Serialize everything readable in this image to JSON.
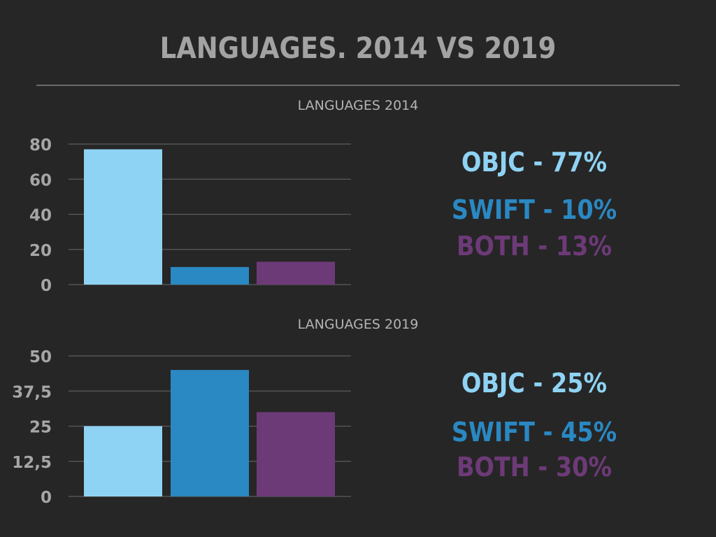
{
  "title": "LANGUAGES. 2014 VS 2019",
  "colors": {
    "objc": "#8fd3f4",
    "swift": "#2a88c2",
    "both": "#6d3a78",
    "background": "#262626"
  },
  "chart_data": [
    {
      "type": "bar",
      "title": "LANGUAGES 2014",
      "categories": [
        "OBJC",
        "SWIFT",
        "BOTH"
      ],
      "values": [
        77,
        10,
        13
      ],
      "ylim": [
        0,
        80
      ],
      "yticks": [
        "0",
        "20",
        "40",
        "60",
        "80"
      ],
      "grid": true,
      "annotations": [
        "OBJC - 77%",
        "SWIFT - 10%",
        "BOTH - 13%"
      ]
    },
    {
      "type": "bar",
      "title": "LANGUAGES 2019",
      "categories": [
        "OBJC",
        "SWIFT",
        "BOTH"
      ],
      "values": [
        25,
        45,
        30
      ],
      "ylim": [
        0,
        50
      ],
      "yticks": [
        "0",
        "12,5",
        "25",
        "37,5",
        "50"
      ],
      "grid": true,
      "annotations": [
        "OBJC - 25%",
        "SWIFT - 45%",
        "BOTH - 30%"
      ]
    }
  ]
}
